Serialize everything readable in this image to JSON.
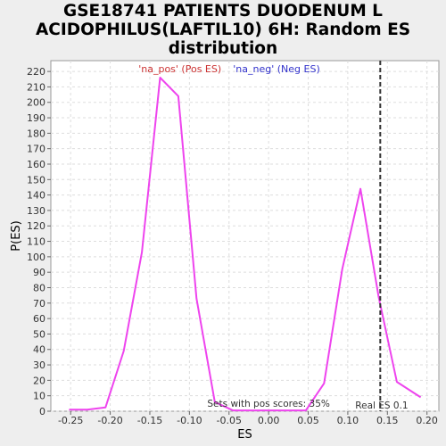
{
  "title_lines": [
    "GSE18741 PATIENTS DUODENUM L",
    "ACIDOPHILUS(LAFTIL10) 6H: Random ES",
    "distribution"
  ],
  "chart_data": {
    "type": "line",
    "xlabel": "ES",
    "ylabel": "P(ES)",
    "xlim": [
      -0.275,
      0.215
    ],
    "ylim": [
      0,
      227
    ],
    "xticks": [
      -0.25,
      -0.2,
      -0.15,
      -0.1,
      -0.05,
      0.0,
      0.05,
      0.1,
      0.15,
      0.2
    ],
    "xtick_labels": [
      "-0.25",
      "-0.20",
      "-0.15",
      "-0.10",
      "-0.05",
      "0.00",
      "0.05",
      "0.10",
      "0.15",
      "0.20"
    ],
    "yticks": [
      0,
      10,
      20,
      30,
      40,
      50,
      60,
      70,
      80,
      90,
      100,
      110,
      120,
      130,
      140,
      150,
      160,
      170,
      180,
      190,
      200,
      210,
      220
    ],
    "grid": true,
    "legend": {
      "placement": "top",
      "entries": [
        {
          "label": "'na_pos' (Pos ES)",
          "color": "#cc3333"
        },
        {
          "label": "'na_neg' (Neg ES)",
          "color": "#3333cc"
        }
      ]
    },
    "series": [
      {
        "color": "#ee44ee",
        "x": [
          -0.252,
          -0.229,
          -0.206,
          -0.183,
          -0.16,
          -0.137,
          -0.114,
          -0.091,
          -0.068,
          -0.045,
          -0.022,
          0.001,
          0.024,
          0.047,
          0.07,
          0.093,
          0.116,
          0.139,
          0.162,
          0.192
        ],
        "y": [
          1,
          1,
          2.5,
          39,
          103,
          216,
          204,
          73,
          6,
          0.5,
          0.5,
          0.5,
          0.5,
          0.5,
          18,
          92,
          144,
          74,
          19,
          9
        ]
      }
    ],
    "vline": {
      "x": 0.141,
      "label": "Real ES 0.1",
      "color": "#333333"
    },
    "annotation": "Sets with pos scores: 35%"
  }
}
